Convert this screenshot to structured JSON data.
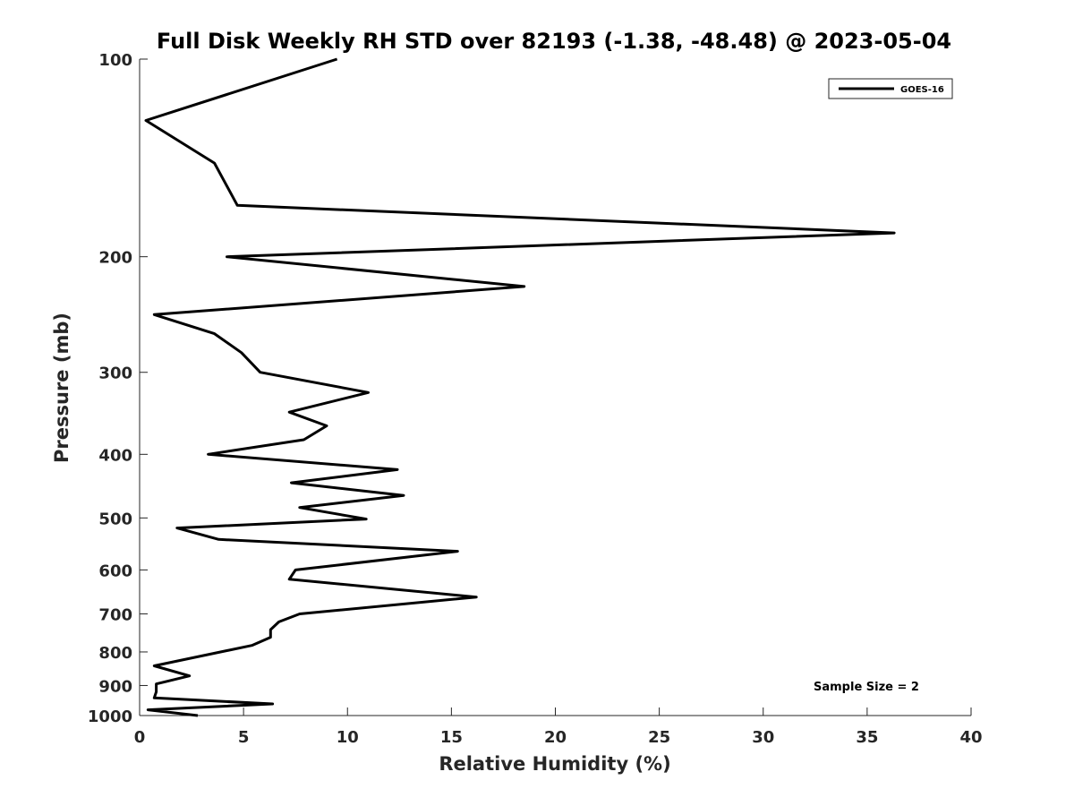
{
  "chart_data": {
    "type": "line",
    "title": "Full Disk Weekly RH STD over 82193 (-1.38, -48.48) @ 2023-05-04",
    "xlabel": "Relative Humidity (%)",
    "ylabel": "Pressure (mb)",
    "xlim": [
      0,
      40
    ],
    "ylim": [
      100,
      1000
    ],
    "yscale": "log",
    "yreversed": true,
    "grid": false,
    "legend_position": "top-right",
    "x_ticks": [
      "0",
      "5",
      "10",
      "15",
      "20",
      "25",
      "30",
      "35",
      "40"
    ],
    "y_ticks": [
      "100",
      "200",
      "300",
      "400",
      "500",
      "600",
      "700",
      "800",
      "900",
      "1000"
    ],
    "series": [
      {
        "name": "GOES-16",
        "color": "#000000",
        "x": [
          9.5,
          0.3,
          3.6,
          4.7,
          36.3,
          4.2,
          18.5,
          0.7,
          3.6,
          4.9,
          5.8,
          11.0,
          7.2,
          9.0,
          7.9,
          3.3,
          12.4,
          7.3,
          12.7,
          7.7,
          10.9,
          1.8,
          3.8,
          15.3,
          7.5,
          7.2,
          16.2,
          7.7,
          6.7,
          6.3,
          6.3,
          5.4,
          0.7,
          2.4,
          0.8,
          0.8,
          0.7,
          6.4,
          0.4,
          2.8
        ],
        "y": [
          100,
          124,
          144,
          167,
          184,
          200,
          222,
          245,
          262,
          280,
          300,
          322,
          345,
          362,
          380,
          400,
          422,
          442,
          462,
          482,
          502,
          518,
          539,
          562,
          600,
          620,
          660,
          700,
          720,
          740,
          760,
          782,
          840,
          870,
          895,
          920,
          940,
          960,
          980,
          1000
        ]
      }
    ],
    "annotation": "Sample Size = 2"
  }
}
